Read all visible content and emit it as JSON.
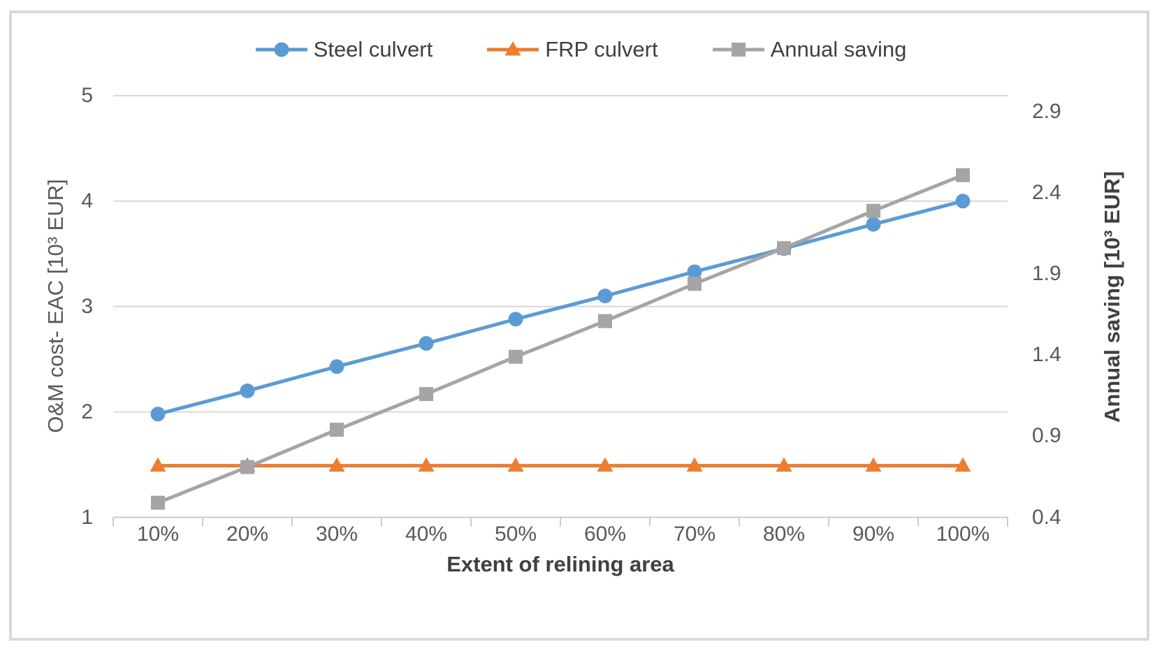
{
  "chart_data": {
    "type": "line",
    "categories": [
      "10%",
      "20%",
      "30%",
      "40%",
      "50%",
      "60%",
      "70%",
      "80%",
      "90%",
      "100%"
    ],
    "series": [
      {
        "name": "Steel culvert",
        "color": "#5B9BD5",
        "marker": "circle",
        "axis": "left",
        "values": [
          1.98,
          2.2,
          2.43,
          2.65,
          2.88,
          3.1,
          3.33,
          3.55,
          3.78,
          4.0
        ]
      },
      {
        "name": "FRP culvert",
        "color": "#ED7D31",
        "marker": "triangle",
        "axis": "left",
        "values": [
          1.49,
          1.49,
          1.49,
          1.49,
          1.49,
          1.49,
          1.49,
          1.49,
          1.49,
          1.49
        ]
      },
      {
        "name": "Annual saving",
        "color": "#A5A5A5",
        "marker": "square",
        "axis": "right",
        "values": [
          0.49,
          0.71,
          0.94,
          1.16,
          1.39,
          1.61,
          1.84,
          2.06,
          2.29,
          2.51
        ]
      }
    ],
    "xlabel": "Extent of relining area",
    "y_axis_left": {
      "title": "O&M cost- EAC [10³ EUR]",
      "min": 1,
      "max": 5,
      "ticks": [
        5,
        4,
        3,
        2,
        1
      ]
    },
    "y_axis_right": {
      "title": "Annual saving [10³ EUR]",
      "min": 0.4,
      "max": 3.0,
      "tick_labels": [
        "2.9",
        "2.4",
        "1.9",
        "1.4",
        "0.9",
        "0.4"
      ]
    },
    "legend_position": "top",
    "grid": "horizontal",
    "colors": {
      "gridline": "#D9D9D9",
      "axis_line": "#CBCBCB",
      "tick_label": "#595959",
      "title_text": "#404040",
      "frame_border": "#D9D9D9",
      "background": "#FFFFFF"
    }
  }
}
